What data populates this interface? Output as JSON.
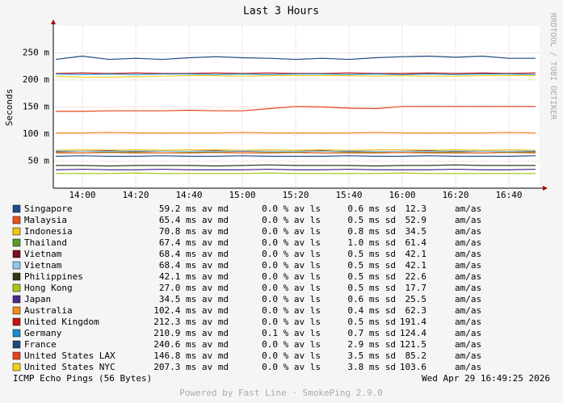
{
  "chart_data": {
    "type": "line",
    "title": "Last 3 Hours",
    "ylabel": "Seconds",
    "side_label": "RRDTOOL / TOBI OETIKER",
    "x": [
      "13:50",
      "14:00",
      "14:10",
      "14:20",
      "14:30",
      "14:40",
      "14:50",
      "15:00",
      "15:10",
      "15:20",
      "15:30",
      "15:40",
      "15:50",
      "16:00",
      "16:10",
      "16:20",
      "16:30",
      "16:40",
      "16:50"
    ],
    "xticks": [
      "14:00",
      "14:20",
      "14:40",
      "15:00",
      "15:20",
      "15:40",
      "16:00",
      "16:20",
      "16:40"
    ],
    "ylim": [
      0,
      0.3
    ],
    "yticks": [
      {
        "value": 0.05,
        "label": "50 m"
      },
      {
        "value": 0.1,
        "label": "100 m"
      },
      {
        "value": 0.15,
        "label": "150 m"
      },
      {
        "value": 0.2,
        "label": "200 m"
      },
      {
        "value": 0.25,
        "label": "250 m"
      }
    ],
    "grid": true,
    "series": [
      {
        "name": "Singapore",
        "color": "#1f4e8c",
        "stats": [
          "59.2 ms av md",
          "0.0 % av ls",
          "0.6 ms sd",
          "12.3",
          "am/as"
        ],
        "values": [
          0.059,
          0.06,
          0.059,
          0.059,
          0.06,
          0.059,
          0.059,
          0.06,
          0.059,
          0.059,
          0.059,
          0.06,
          0.059,
          0.059,
          0.06,
          0.059,
          0.059,
          0.059,
          0.06
        ]
      },
      {
        "name": "Malaysia",
        "color": "#e8541c",
        "stats": [
          "65.4 ms av md",
          "0.0 % av ls",
          "0.5 ms sd",
          "52.9",
          "am/as"
        ],
        "values": [
          0.065,
          0.065,
          0.066,
          0.065,
          0.065,
          0.065,
          0.066,
          0.065,
          0.065,
          0.066,
          0.065,
          0.065,
          0.065,
          0.066,
          0.065,
          0.065,
          0.065,
          0.066,
          0.065
        ]
      },
      {
        "name": "Indonesia",
        "color": "#f2c314",
        "stats": [
          "70.8 ms av md",
          "0.0 % av ls",
          "0.8 ms sd",
          "34.5",
          "am/as"
        ],
        "values": [
          0.07,
          0.071,
          0.07,
          0.071,
          0.07,
          0.071,
          0.071,
          0.07,
          0.071,
          0.07,
          0.071,
          0.07,
          0.071,
          0.071,
          0.07,
          0.071,
          0.07,
          0.071,
          0.07
        ]
      },
      {
        "name": "Thailand",
        "color": "#5a9a2a",
        "stats": [
          "67.4 ms av md",
          "0.0 % av ls",
          "1.0 ms sd",
          "61.4",
          "am/as"
        ],
        "values": [
          0.067,
          0.068,
          0.067,
          0.067,
          0.068,
          0.067,
          0.067,
          0.068,
          0.067,
          0.067,
          0.068,
          0.067,
          0.067,
          0.068,
          0.067,
          0.067,
          0.068,
          0.067,
          0.067
        ]
      },
      {
        "name": "Vietnam",
        "color": "#7a0f1f",
        "stats": [
          "68.4 ms av md",
          "0.0 % av ls",
          "0.5 ms sd",
          "42.1",
          "am/as"
        ],
        "values": [
          0.068,
          0.068,
          0.069,
          0.068,
          0.068,
          0.068,
          0.069,
          0.068,
          0.068,
          0.068,
          0.069,
          0.068,
          0.068,
          0.068,
          0.069,
          0.068,
          0.068,
          0.068,
          0.068
        ]
      },
      {
        "name": "Vietnam",
        "color": "#8ec8f0",
        "stats": [
          "68.4 ms av md",
          "0.0 % av ls",
          "0.5 ms sd",
          "42.1",
          "am/as"
        ],
        "values": [
          0.069,
          0.068,
          0.068,
          0.069,
          0.068,
          0.068,
          0.068,
          0.069,
          0.068,
          0.068,
          0.068,
          0.069,
          0.068,
          0.068,
          0.068,
          0.069,
          0.068,
          0.068,
          0.069
        ]
      },
      {
        "name": "Philippines",
        "color": "#2f3a14",
        "stats": [
          "42.1 ms av md",
          "0.0 % av ls",
          "0.5 ms sd",
          "22.6",
          "am/as"
        ],
        "values": [
          0.042,
          0.042,
          0.041,
          0.042,
          0.042,
          0.042,
          0.041,
          0.042,
          0.043,
          0.042,
          0.042,
          0.042,
          0.041,
          0.042,
          0.042,
          0.043,
          0.042,
          0.042,
          0.042
        ]
      },
      {
        "name": "Hong Kong",
        "color": "#a8c814",
        "stats": [
          "27.0 ms av md",
          "0.0 % av ls",
          "0.5 ms sd",
          "17.7",
          "am/as"
        ],
        "values": [
          0.027,
          0.027,
          0.027,
          0.028,
          0.027,
          0.027,
          0.027,
          0.027,
          0.028,
          0.027,
          0.027,
          0.027,
          0.027,
          0.028,
          0.027,
          0.027,
          0.027,
          0.027,
          0.027
        ]
      },
      {
        "name": "Japan",
        "color": "#4a2a8a",
        "stats": [
          "34.5 ms av md",
          "0.0 % av ls",
          "0.6 ms sd",
          "25.5",
          "am/as"
        ],
        "values": [
          0.034,
          0.035,
          0.034,
          0.034,
          0.035,
          0.034,
          0.034,
          0.034,
          0.035,
          0.034,
          0.034,
          0.035,
          0.034,
          0.034,
          0.034,
          0.035,
          0.034,
          0.034,
          0.035
        ]
      },
      {
        "name": "Australia",
        "color": "#f08c1c",
        "stats": [
          "102.4 ms av md",
          "0.0 % av ls",
          "0.4 ms sd",
          "62.3",
          "am/as"
        ],
        "values": [
          0.102,
          0.102,
          0.103,
          0.102,
          0.102,
          0.102,
          0.102,
          0.103,
          0.102,
          0.102,
          0.102,
          0.102,
          0.103,
          0.102,
          0.102,
          0.102,
          0.102,
          0.103,
          0.102
        ]
      },
      {
        "name": "United Kingdom",
        "color": "#c81414",
        "stats": [
          "212.3 ms av md",
          "0.0 % av ls",
          "0.5 ms sd",
          "191.4",
          "am/as"
        ],
        "values": [
          0.212,
          0.213,
          0.212,
          0.213,
          0.212,
          0.212,
          0.213,
          0.212,
          0.213,
          0.212,
          0.212,
          0.213,
          0.212,
          0.212,
          0.213,
          0.212,
          0.213,
          0.212,
          0.213
        ]
      },
      {
        "name": "Germany",
        "color": "#1c8ccc",
        "stats": [
          "210.9 ms av md",
          "0.1 % av ls",
          "0.7 ms sd",
          "124.4",
          "am/as"
        ],
        "values": [
          0.211,
          0.21,
          0.211,
          0.21,
          0.211,
          0.211,
          0.21,
          0.211,
          0.21,
          0.211,
          0.211,
          0.21,
          0.211,
          0.21,
          0.211,
          0.21,
          0.211,
          0.211,
          0.21
        ]
      },
      {
        "name": "France",
        "color": "#1c4a7c",
        "stats": [
          "240.6 ms av md",
          "0.0 % av ls",
          "2.9 ms sd",
          "121.5",
          "am/as"
        ],
        "values": [
          0.238,
          0.244,
          0.238,
          0.24,
          0.238,
          0.241,
          0.243,
          0.241,
          0.24,
          0.238,
          0.24,
          0.238,
          0.241,
          0.243,
          0.244,
          0.242,
          0.244,
          0.24,
          0.24
        ]
      },
      {
        "name": "United States LAX",
        "color": "#e8441c",
        "stats": [
          "146.8 ms av md",
          "0.0 % av ls",
          "3.5 ms sd",
          "85.2",
          "am/as"
        ],
        "values": [
          0.142,
          0.142,
          0.143,
          0.143,
          0.143,
          0.144,
          0.143,
          0.143,
          0.147,
          0.151,
          0.15,
          0.148,
          0.147,
          0.151,
          0.151,
          0.151,
          0.151,
          0.151,
          0.151
        ]
      },
      {
        "name": "United States NYC",
        "color": "#f2d21c",
        "stats": [
          "207.3 ms av md",
          "0.0 % av ls",
          "3.8 ms sd",
          "103.6",
          "am/as"
        ],
        "values": [
          0.207,
          0.205,
          0.205,
          0.206,
          0.207,
          0.208,
          0.208,
          0.207,
          0.208,
          0.208,
          0.208,
          0.208,
          0.207,
          0.208,
          0.207,
          0.207,
          0.208,
          0.208,
          0.208
        ]
      }
    ],
    "footer_left": "ICMP Echo Pings (56 Bytes)",
    "footer_right": "Wed Apr 29 16:49:25 2026",
    "credit": "Powered by Fast Line · SmokePing 2.9.0"
  }
}
